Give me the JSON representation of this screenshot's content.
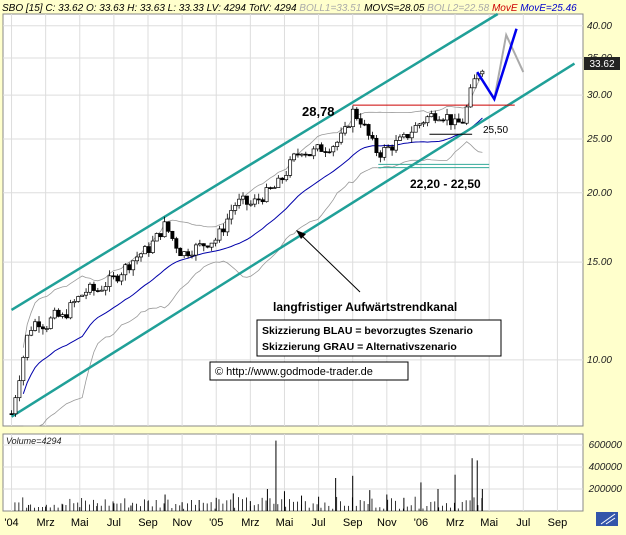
{
  "header": {
    "symbol": "SBO [15]",
    "fields": [
      {
        "text": "C: 33.62",
        "color": "#000000"
      },
      {
        "text": "O: 33.63",
        "color": "#000000"
      },
      {
        "text": "H: 33.63",
        "color": "#000000"
      },
      {
        "text": "L: 33.33",
        "color": "#000000"
      },
      {
        "text": "LV: 4294",
        "color": "#000000"
      },
      {
        "text": "TotV: 4294",
        "color": "#000000"
      },
      {
        "text": "BOLL1=33.51",
        "color": "#aaaaaa"
      },
      {
        "text": "MOVS=28.05",
        "color": "#000000"
      },
      {
        "text": "BOLL2=22.58",
        "color": "#aaaaaa"
      },
      {
        "text": "MovE",
        "color": "#cc0000"
      },
      {
        "text": "MovE=25.46",
        "color": "#0000cc"
      }
    ]
  },
  "price_badge": "33.62",
  "annotations": {
    "high_label": "28,78",
    "support_label": "22,20 - 22,50",
    "level_label": "25,50",
    "channel_label": "langfristiger Aufwärtstrendkanal",
    "legend_blue": "Skizzierung BLAU = bevorzugtes Szenario",
    "legend_grey": "Skizzierung GRAU = Alternativszenario",
    "source": "© http://www.godmode-trader.de"
  },
  "volume_title": "Volume=4294",
  "chart_data": {
    "type": "candlestick",
    "y_scale": "log",
    "ylim": [
      7.6,
      42
    ],
    "price_ticks": [
      "10.00",
      "15.00",
      "20.00",
      "25.00",
      "30.00",
      "35.00",
      "40.00"
    ],
    "price_tick_values": [
      10,
      15,
      20,
      25,
      30,
      35,
      40
    ],
    "volume_ticks": [
      "200000",
      "400000",
      "600000"
    ],
    "volume_tick_values": [
      200000,
      400000,
      600000
    ],
    "volume_ylim": [
      0,
      700000
    ],
    "x_labels": [
      "'04",
      "Mrz",
      "Mai",
      "Jul",
      "Sep",
      "Nov",
      "'05",
      "Mrz",
      "Mai",
      "Jul",
      "Sep",
      "Nov",
      "'06",
      "Mrz",
      "Mai",
      "Jul",
      "Sep"
    ],
    "x_label_months": [
      0,
      2,
      4,
      6,
      8,
      10,
      12,
      14,
      16,
      18,
      20,
      22,
      24,
      26,
      28,
      30,
      32
    ],
    "price_path": [
      [
        0,
        8.0
      ],
      [
        0.5,
        9.5
      ],
      [
        1,
        11.3
      ],
      [
        1.5,
        11.8
      ],
      [
        2,
        11.5
      ],
      [
        2.5,
        12.0
      ],
      [
        3,
        11.9
      ],
      [
        3.5,
        12.5
      ],
      [
        4,
        13.0
      ],
      [
        4.5,
        13.4
      ],
      [
        5,
        13.3
      ],
      [
        5.5,
        13.7
      ],
      [
        6,
        14.0
      ],
      [
        6.5,
        14.5
      ],
      [
        7,
        15.0
      ],
      [
        7.5,
        15.5
      ],
      [
        8,
        15.8
      ],
      [
        8.5,
        16.6
      ],
      [
        9,
        17.5
      ],
      [
        9.5,
        16.4
      ],
      [
        10,
        15.5
      ],
      [
        10.5,
        15.8
      ],
      [
        11,
        16.0
      ],
      [
        11.5,
        16.3
      ],
      [
        12,
        16.5
      ],
      [
        12.5,
        17.5
      ],
      [
        13,
        19.0
      ],
      [
        13.5,
        19.3
      ],
      [
        14,
        19.0
      ],
      [
        14.5,
        19.5
      ],
      [
        15,
        20.0
      ],
      [
        15.5,
        20.5
      ],
      [
        16,
        21.5
      ],
      [
        16.5,
        23.0
      ],
      [
        17,
        24.0
      ],
      [
        17.5,
        23.5
      ],
      [
        18,
        24.0
      ],
      [
        18.5,
        24.2
      ],
      [
        19,
        24.5
      ],
      [
        19.5,
        25.5
      ],
      [
        20,
        28.0
      ],
      [
        20.5,
        27.0
      ],
      [
        21,
        25.0
      ],
      [
        21.5,
        23.5
      ],
      [
        22,
        24.0
      ],
      [
        22.5,
        24.5
      ],
      [
        23,
        25.0
      ],
      [
        23.5,
        26.0
      ],
      [
        24,
        26.8
      ],
      [
        24.5,
        27.5
      ],
      [
        25,
        27.8
      ],
      [
        25.5,
        27.5
      ],
      [
        26,
        26.5
      ],
      [
        26.5,
        27.0
      ],
      [
        27,
        31.0
      ],
      [
        27.5,
        34.0
      ],
      [
        27.8,
        33.62
      ]
    ],
    "volume": [
      [
        1,
        55000
      ],
      [
        2,
        40000
      ],
      [
        3,
        60000
      ],
      [
        4,
        35000
      ],
      [
        5,
        45000
      ],
      [
        6,
        70000
      ],
      [
        7,
        50000
      ],
      [
        8,
        90000
      ],
      [
        9,
        150000
      ],
      [
        10,
        80000
      ],
      [
        11,
        100000
      ],
      [
        12,
        120000
      ],
      [
        13,
        160000
      ],
      [
        14,
        90000
      ],
      [
        15,
        200000
      ],
      [
        15.5,
        640000
      ],
      [
        16,
        180000
      ],
      [
        17,
        140000
      ],
      [
        18,
        130000
      ],
      [
        19,
        300000
      ],
      [
        20,
        320000
      ],
      [
        21,
        190000
      ],
      [
        22,
        150000
      ],
      [
        23,
        120000
      ],
      [
        24,
        260000
      ],
      [
        25,
        200000
      ],
      [
        26,
        330000
      ],
      [
        27,
        480000
      ],
      [
        27.3,
        460000
      ],
      [
        27.6,
        200000
      ]
    ],
    "channel_upper": [
      [
        0,
        12.3
      ],
      [
        28.5,
        42.0
      ]
    ],
    "channel_lower": [
      [
        0,
        7.9
      ],
      [
        33,
        34.2
      ]
    ],
    "resistance_line": {
      "value": 28.78,
      "x": [
        20,
        29.5
      ],
      "color": "#cc0000"
    },
    "support_lines": {
      "values": [
        22.2,
        22.5
      ],
      "x": [
        21.5,
        28
      ],
      "color": "#33aa99"
    },
    "level_line": {
      "value": 25.5,
      "x": [
        24.5,
        27
      ],
      "color": "#000000"
    },
    "scenario_blue": [
      [
        27.3,
        33.0
      ],
      [
        28.3,
        29.5
      ],
      [
        29.6,
        39.5
      ]
    ],
    "scenario_grey": [
      [
        28.3,
        29.5
      ],
      [
        29.0,
        38.5
      ],
      [
        30.0,
        33.0
      ]
    ]
  }
}
